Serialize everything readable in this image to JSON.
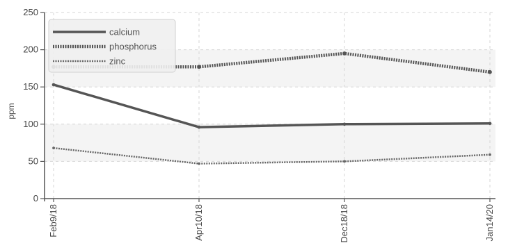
{
  "chart_data": {
    "type": "line",
    "categories": [
      "Feb9/18",
      "Apr10/18",
      "Dec18/18",
      "Jan14/20"
    ],
    "ylabel": "ppm",
    "ylim": [
      0,
      250
    ],
    "yticks": [
      0,
      50,
      100,
      150,
      200,
      250
    ],
    "grid": true,
    "legend_position": "top-left",
    "series": [
      {
        "name": "calcium",
        "values": [
          153,
          96,
          100,
          101
        ],
        "color": "#555555",
        "style": "solid"
      },
      {
        "name": "phosphorus",
        "values": [
          177,
          177,
          195,
          170
        ],
        "color": "#555555",
        "style": "dotted-thick"
      },
      {
        "name": "zinc",
        "values": [
          68,
          47,
          50,
          59
        ],
        "color": "#666666",
        "style": "dotted-thin"
      }
    ],
    "band_color": "#f4f4f4",
    "grid_color": "#d6d6d6",
    "axis_color": "#555555"
  }
}
